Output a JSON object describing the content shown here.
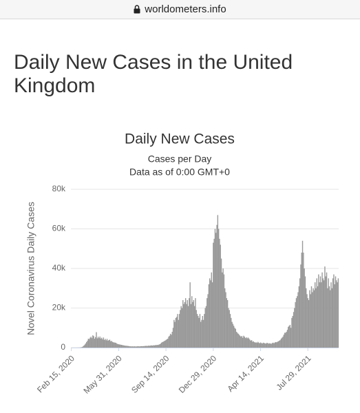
{
  "page": {
    "url": "worldometers.info",
    "heading": "Daily New Cases in the United Kingdom"
  },
  "chart_data": {
    "type": "bar",
    "title": "Daily New Cases",
    "subtitle": "Cases per Day",
    "note": "Data as of 0:00 GMT+0",
    "y_label": "Novel Coronavirus Daily Cases",
    "color": "#999999",
    "grid": true,
    "ylim": [
      0,
      80000
    ],
    "yticks": [
      0,
      {
        "value": 20000,
        "label": "20k"
      },
      {
        "value": 40000,
        "label": "40k"
      },
      {
        "value": 60000,
        "label": "60k"
      },
      {
        "value": 80000,
        "label": "80k"
      }
    ],
    "categories": [
      "Feb 15, 2020",
      null,
      null,
      null,
      null,
      null,
      null,
      null,
      null,
      null,
      null,
      null,
      null,
      null,
      null,
      null,
      null,
      null,
      null,
      null,
      null,
      null,
      null,
      null,
      null,
      null,
      null,
      null,
      null,
      null,
      null,
      null,
      null,
      null,
      null,
      null,
      null,
      null,
      null,
      null,
      null,
      null,
      null,
      null,
      null,
      null,
      null,
      null,
      null,
      null,
      null,
      null,
      null,
      "May 31, 2020",
      null,
      null,
      null,
      null,
      null,
      null,
      null,
      null,
      null,
      null,
      null,
      null,
      null,
      null,
      null,
      null,
      null,
      null,
      null,
      null,
      null,
      null,
      null,
      null,
      null,
      null,
      null,
      null,
      null,
      null,
      null,
      null,
      null,
      null,
      null,
      null,
      null,
      null,
      null,
      null,
      null,
      null,
      null,
      null,
      null,
      null,
      null,
      null,
      null,
      null,
      null,
      null,
      "Sep 14, 2020",
      null,
      null,
      null,
      null,
      null,
      null,
      null,
      null,
      null,
      null,
      null,
      null,
      null,
      null,
      null,
      null,
      null,
      null,
      null,
      null,
      null,
      null,
      null,
      null,
      null,
      null,
      null,
      null,
      null,
      null,
      null,
      null,
      null,
      null,
      null,
      null,
      null,
      null,
      null,
      null,
      null,
      null,
      null,
      null,
      null,
      null,
      null,
      null,
      null,
      null,
      null,
      null,
      "Dec 29, 2020",
      null,
      null,
      null,
      null,
      null,
      null,
      null,
      null,
      null,
      null,
      null,
      null,
      null,
      null,
      null,
      null,
      null,
      null,
      null,
      null,
      null,
      null,
      null,
      null,
      null,
      null,
      null,
      null,
      null,
      null,
      null,
      null,
      null,
      null,
      null,
      null,
      null,
      null,
      null,
      null,
      null,
      null,
      null,
      null,
      null,
      null,
      null,
      null,
      null,
      null,
      null,
      null,
      "Apr 14, 2021",
      null,
      null,
      null,
      null,
      null,
      null,
      null,
      null,
      null,
      null,
      null,
      null,
      null,
      null,
      null,
      null,
      null,
      null,
      null,
      null,
      null,
      null,
      null,
      null,
      null,
      null,
      null,
      null,
      null,
      null,
      null,
      null,
      null,
      null,
      null,
      null,
      null,
      null,
      null,
      null,
      null,
      null,
      null,
      null,
      null,
      null,
      null,
      null,
      null,
      null,
      null,
      null,
      "Jul 29, 2021",
      null,
      null,
      null,
      null,
      null,
      null,
      null,
      null,
      null,
      null,
      null,
      null,
      null,
      null,
      null,
      null,
      null,
      null,
      null,
      null,
      null,
      null,
      null,
      null,
      null,
      null,
      null,
      null,
      null,
      null,
      null,
      null,
      null,
      null
    ],
    "values": [
      0,
      0,
      0,
      0,
      0,
      0,
      10,
      20,
      30,
      50,
      80,
      150,
      300,
      600,
      1000,
      1500,
      2100,
      2800,
      3500,
      4500,
      4300,
      5000,
      5500,
      4800,
      6200,
      5800,
      4500,
      5300,
      7800,
      4700,
      5500,
      4800,
      5600,
      4600,
      5000,
      4200,
      5100,
      3900,
      4400,
      3700,
      4400,
      3500,
      3800,
      4000,
      3200,
      3400,
      2900,
      2700,
      2600,
      2500,
      2400,
      2000,
      1800,
      1700,
      1600,
      1500,
      1400,
      1300,
      1200,
      1100,
      1000,
      950,
      900,
      850,
      800,
      700,
      650,
      600,
      650,
      600,
      600,
      650,
      550,
      600,
      650,
      700,
      600,
      650,
      700,
      750,
      700,
      750,
      800,
      850,
      900,
      800,
      950,
      1000,
      900,
      1100,
      1100,
      1000,
      1200,
      1100,
      1300,
      1200,
      1400,
      1300,
      1500,
      1700,
      2000,
      2500,
      2800,
      3000,
      3300,
      3500,
      3900,
      4200,
      4500,
      5500,
      6000,
      7000,
      6500,
      8000,
      10000,
      14000,
      13000,
      15000,
      15500,
      17000,
      14000,
      17000,
      19000,
      21000,
      20000,
      24000,
      22000,
      23000,
      25000,
      22000,
      24000,
      21000,
      25000,
      33000,
      22000,
      26000,
      23000,
      24000,
      21000,
      25000,
      19000,
      17000,
      16000,
      15000,
      17000,
      13000,
      14000,
      16000,
      14000,
      17000,
      20000,
      21000,
      25000,
      27000,
      32000,
      35000,
      34000,
      38000,
      33000,
      53000,
      55000,
      60000,
      58000,
      62000,
      67000,
      60000,
      55000,
      52000,
      45000,
      38000,
      40000,
      37000,
      30000,
      28000,
      25000,
      24000,
      20000,
      19000,
      17000,
      15000,
      13000,
      12000,
      11000,
      10000,
      9500,
      8000,
      7500,
      7000,
      6500,
      6000,
      5500,
      5900,
      5000,
      6000,
      5500,
      4800,
      5200,
      4700,
      5100,
      4600,
      4000,
      3500,
      3800,
      3000,
      3200,
      2800,
      2500,
      2700,
      2400,
      2900,
      2500,
      2200,
      2600,
      2300,
      2100,
      2500,
      2300,
      2200,
      2000,
      2400,
      2300,
      2000,
      2200,
      2100,
      1900,
      2300,
      2500,
      2200,
      2600,
      2800,
      2700,
      3000,
      3200,
      3500,
      3800,
      4500,
      5000,
      5500,
      6500,
      7500,
      7500,
      8000,
      9000,
      10500,
      11000,
      11500,
      10000,
      15000,
      16000,
      18000,
      20000,
      23000,
      25000,
      26000,
      28000,
      31000,
      35000,
      42000,
      48000,
      54000,
      48000,
      40000,
      36000,
      30000,
      27000,
      25000,
      24000,
      29000,
      27000,
      31000,
      28000,
      30000,
      29000,
      33000,
      30000,
      35000,
      31000,
      37000,
      33000,
      36000,
      33000,
      38000,
      35000,
      34000,
      41000,
      36000,
      38000,
      30000,
      35000,
      31000,
      29000,
      33000,
      30000,
      35000,
      37000,
      32000,
      36000,
      34000,
      33000,
      35000
    ]
  }
}
